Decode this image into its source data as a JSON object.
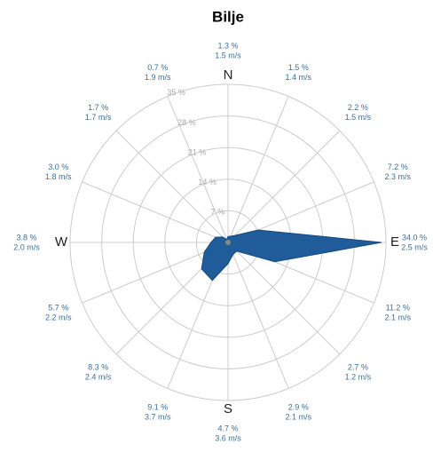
{
  "chart_data": {
    "type": "windrose",
    "title": "Bilje",
    "categories": [
      "N",
      null,
      null,
      null,
      "E",
      null,
      null,
      null,
      "S",
      null,
      null,
      null,
      "W",
      null,
      null,
      null
    ],
    "values": [
      1.3,
      1.5,
      2.2,
      7.2,
      34.0,
      11.2,
      2.7,
      2.9,
      4.7,
      9.1,
      8.3,
      5.7,
      3.8,
      3.0,
      1.7,
      0.7
    ],
    "value_labels": [
      "1.3 %",
      "1.5 %",
      "2.2 %",
      "7.2 %",
      "34.0 %",
      "11.2 %",
      "2.7 %",
      "2.9 %",
      "4.7 %",
      "9.1 %",
      "8.3 %",
      "5.7 %",
      "3.8 %",
      "3.0 %",
      "1.7 %",
      "0.7 %"
    ],
    "speed_labels": [
      "1.5 m/s",
      "1.4 m/s",
      "1.5 m/s",
      "2.3 m/s",
      "2.5 m/s",
      "2.1 m/s",
      "1.2 m/s",
      "2.1 m/s",
      "3.6 m/s",
      "3.7 m/s",
      "2.4 m/s",
      "2.2 m/s",
      "2.0 m/s",
      "1.8 m/s",
      "1.7 m/s",
      "1.9 m/s"
    ],
    "color": "#1f5c99",
    "rlim": [
      0,
      35
    ],
    "rticks": [
      {
        "value": 7,
        "label": "7 %"
      },
      {
        "value": 14,
        "label": "14 %"
      },
      {
        "value": 21,
        "label": "21 %"
      },
      {
        "value": 28,
        "label": "28 %"
      },
      {
        "value": 35,
        "label": "35 %"
      }
    ],
    "grid": true
  }
}
